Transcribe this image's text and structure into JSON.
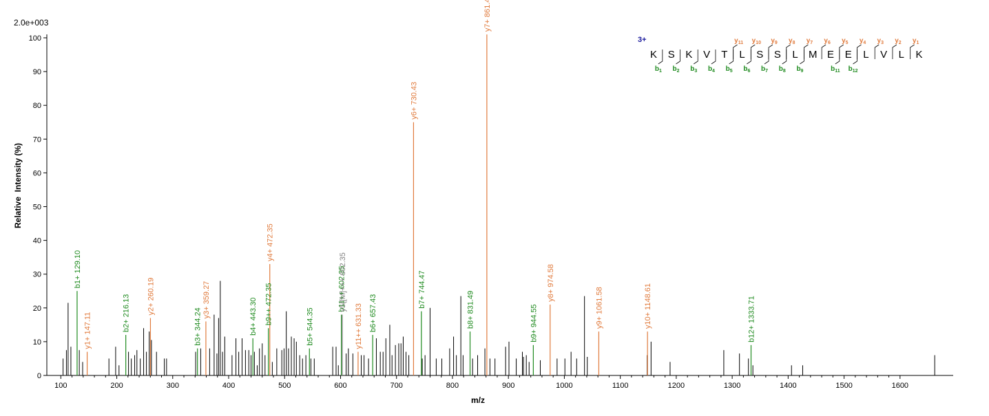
{
  "colors": {
    "b_ion": "#1e8a1e",
    "y_ion": "#e07a3c",
    "other_ion": "#808080",
    "peak": "#000000",
    "charge": "#1a1a9c"
  },
  "chart_data": {
    "type": "bar",
    "scale_label": "2.0e+003",
    "xlabel": "m/z",
    "ylabel": "Relative  Intensity (%)",
    "xlim": [
      75,
      1695
    ],
    "ylim": [
      0,
      100
    ],
    "xticks": [
      100,
      200,
      300,
      400,
      500,
      600,
      700,
      800,
      900,
      1000,
      1100,
      1200,
      1300,
      1400,
      1500,
      1600
    ],
    "yticks": [
      0,
      10,
      20,
      30,
      40,
      50,
      60,
      70,
      80,
      90,
      100
    ],
    "grid": false,
    "annotated_peaks": [
      {
        "label": "y1+ 147.11",
        "mz": 147.11,
        "intensity": 7,
        "ion": "y"
      },
      {
        "label": "b1+ 129.10",
        "mz": 129.1,
        "intensity": 25,
        "ion": "b"
      },
      {
        "label": "b2+ 216.13",
        "mz": 216.13,
        "intensity": 12,
        "ion": "b"
      },
      {
        "label": "y2+ 260.19",
        "mz": 260.19,
        "intensity": 17,
        "ion": "y"
      },
      {
        "label": "b3+ 344.24",
        "mz": 344.24,
        "intensity": 8,
        "ion": "b"
      },
      {
        "label": "y3+ 359.27",
        "mz": 359.27,
        "intensity": 16,
        "ion": "y"
      },
      {
        "label": "b4+ 443.30",
        "mz": 443.3,
        "intensity": 11,
        "ion": "b"
      },
      {
        "label": "b9++ 472.35",
        "mz": 471.0,
        "intensity": 14,
        "ion": "b"
      },
      {
        "label": "y4+ 472.35",
        "mz": 473.5,
        "intensity": 33,
        "ion": "y"
      },
      {
        "label": "b5+ 544.35",
        "mz": 544.35,
        "intensity": 8,
        "ion": "b"
      },
      {
        "label": "b11++ 602.35",
        "mz": 601.5,
        "intensity": 18,
        "ion": "b"
      },
      {
        "label": "y11++ 631.33",
        "mz": 631.33,
        "intensity": 7,
        "ion": "y"
      },
      {
        "label": "b6+ 657.43",
        "mz": 657.43,
        "intensity": 12,
        "ion": "b"
      },
      {
        "label": "y6+ 730.43",
        "mz": 730.43,
        "intensity": 75,
        "ion": "y"
      },
      {
        "label": "b7+ 744.47",
        "mz": 744.47,
        "intensity": 19,
        "ion": "b"
      },
      {
        "label": "b8+ 831.49",
        "mz": 831.49,
        "intensity": 13,
        "ion": "b"
      },
      {
        "label": "y7+ 861.47",
        "mz": 861.47,
        "intensity": 101,
        "ion": "y"
      },
      {
        "label": "b9+ 944.55",
        "mz": 944.55,
        "intensity": 9,
        "ion": "b"
      },
      {
        "label": "y8+ 974.58",
        "mz": 974.58,
        "intensity": 21,
        "ion": "y"
      },
      {
        "label": "y9+ 1061.58",
        "mz": 1061.58,
        "intensity": 13,
        "ion": "y"
      },
      {
        "label": "y10+ 1148.61",
        "mz": 1148.61,
        "intensity": 13,
        "ion": "y"
      },
      {
        "label": "b12+ 1333.71",
        "mz": 1333.71,
        "intensity": 9,
        "ion": "b"
      }
    ],
    "precursor_peak": {
      "label": "y5([M]+++ 602.35",
      "mz": 603.0,
      "intensity": 18,
      "ion": "other"
    },
    "peaks": [
      [
        104,
        5
      ],
      [
        110,
        7.5
      ],
      [
        118,
        8.5
      ],
      [
        133,
        7.5
      ],
      [
        139,
        4
      ],
      [
        186,
        5
      ],
      [
        198,
        8.5
      ],
      [
        204,
        3
      ],
      [
        221,
        7
      ],
      [
        226,
        5
      ],
      [
        232,
        6
      ],
      [
        236,
        7.5
      ],
      [
        242,
        5
      ],
      [
        248,
        14
      ],
      [
        253,
        7
      ],
      [
        258,
        13
      ],
      [
        262,
        10.5
      ],
      [
        271,
        7
      ],
      [
        285,
        5
      ],
      [
        289,
        5
      ],
      [
        341,
        7
      ],
      [
        350,
        8
      ],
      [
        366,
        8
      ],
      [
        374,
        18
      ],
      [
        379,
        6.5
      ],
      [
        382,
        17
      ],
      [
        385,
        28
      ],
      [
        389,
        7
      ],
      [
        393,
        11.5
      ],
      [
        406,
        6
      ],
      [
        413,
        11
      ],
      [
        418,
        7
      ],
      [
        424,
        11
      ],
      [
        430,
        7.5
      ],
      [
        436,
        7.5
      ],
      [
        440,
        6
      ],
      [
        446,
        7
      ],
      [
        451,
        3
      ],
      [
        455,
        8
      ],
      [
        460,
        9.5
      ],
      [
        465,
        6
      ],
      [
        478,
        4
      ],
      [
        486,
        8
      ],
      [
        495,
        7.5
      ],
      [
        499,
        8
      ],
      [
        503,
        19
      ],
      [
        507,
        8
      ],
      [
        512,
        11.5
      ],
      [
        517,
        11
      ],
      [
        521,
        10
      ],
      [
        527,
        6
      ],
      [
        532,
        5
      ],
      [
        538,
        6
      ],
      [
        547,
        5
      ],
      [
        553,
        5
      ],
      [
        586,
        8.5
      ],
      [
        592,
        8.5
      ],
      [
        596,
        3
      ],
      [
        610,
        6.5
      ],
      [
        614,
        8
      ],
      [
        622,
        6.5
      ],
      [
        637,
        6
      ],
      [
        642,
        6
      ],
      [
        650,
        5
      ],
      [
        664,
        11
      ],
      [
        671,
        7
      ],
      [
        676,
        7
      ],
      [
        681,
        11
      ],
      [
        688,
        15
      ],
      [
        692,
        6
      ],
      [
        698,
        9
      ],
      [
        704,
        9.5
      ],
      [
        708,
        9.5
      ],
      [
        712,
        11.5
      ],
      [
        717,
        7
      ],
      [
        722,
        6
      ],
      [
        746,
        5
      ],
      [
        751,
        6
      ],
      [
        760,
        20
      ],
      [
        771,
        5
      ],
      [
        781,
        5
      ],
      [
        795,
        8
      ],
      [
        802,
        11.5
      ],
      [
        807,
        6
      ],
      [
        815,
        23.5
      ],
      [
        819,
        6
      ],
      [
        836,
        5
      ],
      [
        845,
        6
      ],
      [
        858,
        8
      ],
      [
        867,
        5
      ],
      [
        876,
        5
      ],
      [
        895,
        8.5
      ],
      [
        901,
        10
      ],
      [
        914,
        5
      ],
      [
        925,
        7
      ],
      [
        927,
        5.5
      ],
      [
        932,
        6
      ],
      [
        937,
        4
      ],
      [
        957,
        4.5
      ],
      [
        987,
        5
      ],
      [
        1001,
        5
      ],
      [
        1012,
        7
      ],
      [
        1022,
        5
      ],
      [
        1036,
        23.5
      ],
      [
        1041,
        5.5
      ],
      [
        1148,
        6
      ],
      [
        1155,
        10
      ],
      [
        1189,
        4
      ],
      [
        1285,
        7.5
      ],
      [
        1313,
        6.5
      ],
      [
        1329,
        5
      ],
      [
        1337,
        3
      ],
      [
        1406,
        3
      ],
      [
        1426,
        3
      ],
      [
        1662,
        6
      ],
      [
        113,
        21.5
      ]
    ],
    "peptide": {
      "charge": "3+",
      "residues": [
        "K",
        "S",
        "K",
        "V",
        "T",
        "L",
        "S",
        "S",
        "L",
        "M",
        "E",
        "E",
        "L",
        "V",
        "L",
        "K"
      ],
      "y_ions": [
        {
          "label": "y",
          "num": "11",
          "after": 5
        },
        {
          "label": "y",
          "num": "10",
          "after": 6
        },
        {
          "label": "y",
          "num": "9",
          "after": 7
        },
        {
          "label": "y",
          "num": "8",
          "after": 8
        },
        {
          "label": "y",
          "num": "7",
          "after": 9
        },
        {
          "label": "y",
          "num": "6",
          "after": 10
        },
        {
          "label": "y",
          "num": "5",
          "after": 11
        },
        {
          "label": "y",
          "num": "4",
          "after": 12
        },
        {
          "label": "y",
          "num": "3",
          "after": 13
        },
        {
          "label": "y",
          "num": "2",
          "after": 14
        },
        {
          "label": "y",
          "num": "1",
          "after": 15
        }
      ],
      "b_ions": [
        {
          "label": "b",
          "num": "1",
          "after": 1
        },
        {
          "label": "b",
          "num": "2",
          "after": 2
        },
        {
          "label": "b",
          "num": "3",
          "after": 3
        },
        {
          "label": "b",
          "num": "4",
          "after": 4
        },
        {
          "label": "b",
          "num": "5",
          "after": 5
        },
        {
          "label": "b",
          "num": "6",
          "after": 6
        },
        {
          "label": "b",
          "num": "7",
          "after": 7
        },
        {
          "label": "b",
          "num": "8",
          "after": 8
        },
        {
          "label": "b",
          "num": "9",
          "after": 9
        },
        {
          "label": "b",
          "num": "11",
          "after": 11
        },
        {
          "label": "b",
          "num": "12",
          "after": 12
        }
      ]
    }
  }
}
